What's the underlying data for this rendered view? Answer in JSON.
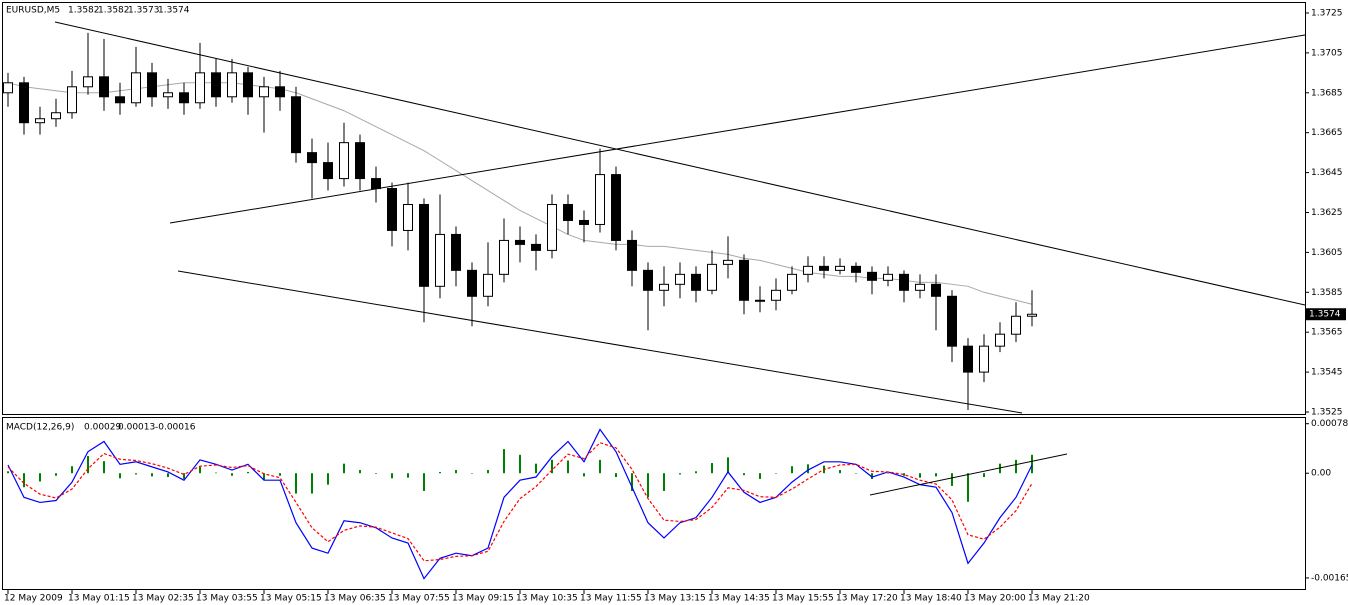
{
  "chart_data": [
    {
      "type": "candlestick",
      "title": "EURUSD,M5",
      "header_values": [
        1.3582,
        1.3582,
        1.3573,
        1.3574
      ],
      "categories": [
        "12 May 2009",
        null,
        null,
        null,
        "13 May 01:15",
        null,
        null,
        null,
        "13 May 02:35",
        null,
        null,
        null,
        "13 May 03:55",
        null,
        null,
        null,
        "13 May 05:15",
        null,
        null,
        null,
        "13 May 06:35",
        null,
        null,
        null,
        "13 May 07:55",
        null,
        null,
        null,
        "13 May 09:15",
        null,
        null,
        null,
        "13 May 10:35",
        null,
        null,
        null,
        "13 May 11:55",
        null,
        null,
        null,
        "13 May 13:15",
        null,
        null,
        null,
        "13 May 14:35",
        null,
        null,
        null,
        "13 May 15:55",
        null,
        null,
        null,
        "13 May 17:20",
        null,
        null,
        null,
        "13 May 18:40",
        null,
        null,
        null,
        "13 May 20:00",
        null,
        null,
        null,
        "13 May 21:20"
      ],
      "open": [
        1.3685,
        1.369,
        1.367,
        1.3672,
        1.3675,
        1.3688,
        1.3693,
        1.3683,
        1.368,
        1.3695,
        1.3683,
        1.3685,
        1.368,
        1.3695,
        1.3683,
        1.3695,
        1.3683,
        1.3688,
        1.3683,
        1.3655,
        1.365,
        1.3642,
        1.366,
        1.3642,
        1.3637,
        1.3616,
        1.3629,
        1.3588,
        1.3614,
        1.3596,
        1.3583,
        1.3594,
        1.3611,
        1.3609,
        1.3606,
        1.3629,
        1.3621,
        1.3619,
        1.3644,
        1.3611,
        1.3596,
        1.3586,
        1.3589,
        1.3594,
        1.3586,
        1.3599,
        1.3601,
        1.3581,
        1.3581,
        1.3586,
        1.3594,
        1.3598,
        1.3596,
        1.3598,
        1.3595,
        1.3591,
        1.3594,
        1.3586,
        1.3589,
        1.3583,
        1.3558,
        1.3545,
        1.3558,
        1.3564,
        1.3573
      ],
      "high": [
        1.3695,
        1.3693,
        1.3678,
        1.3682,
        1.3696,
        1.3715,
        1.3712,
        1.369,
        1.3708,
        1.37,
        1.3692,
        1.369,
        1.371,
        1.3702,
        1.3702,
        1.3698,
        1.3693,
        1.3696,
        1.3688,
        1.3662,
        1.366,
        1.367,
        1.3664,
        1.3648,
        1.364,
        1.364,
        1.3632,
        1.3634,
        1.3618,
        1.36,
        1.361,
        1.3622,
        1.3618,
        1.3614,
        1.3634,
        1.3634,
        1.3626,
        1.3657,
        1.3648,
        1.3616,
        1.36,
        1.3598,
        1.36,
        1.3598,
        1.3606,
        1.3613,
        1.3604,
        1.3588,
        1.3592,
        1.3598,
        1.3603,
        1.3603,
        1.3602,
        1.36,
        1.3598,
        1.3598,
        1.3596,
        1.3594,
        1.3594,
        1.3586,
        1.3562,
        1.3564,
        1.357,
        1.358,
        1.3586
      ],
      "low": [
        1.3678,
        1.3664,
        1.3664,
        1.3668,
        1.3672,
        1.3684,
        1.3676,
        1.3674,
        1.3678,
        1.3678,
        1.3677,
        1.3674,
        1.3677,
        1.3678,
        1.368,
        1.3674,
        1.3665,
        1.3676,
        1.365,
        1.3632,
        1.3636,
        1.3638,
        1.3636,
        1.363,
        1.3608,
        1.3606,
        1.357,
        1.3582,
        1.3588,
        1.3568,
        1.3578,
        1.359,
        1.36,
        1.3596,
        1.3602,
        1.3614,
        1.361,
        1.3615,
        1.3606,
        1.3588,
        1.3566,
        1.3578,
        1.3582,
        1.358,
        1.3584,
        1.3592,
        1.3574,
        1.3575,
        1.3576,
        1.3584,
        1.359,
        1.3592,
        1.3594,
        1.359,
        1.3584,
        1.3588,
        1.358,
        1.3582,
        1.3566,
        1.355,
        1.3526,
        1.354,
        1.3555,
        1.356,
        1.3568
      ],
      "close": [
        1.369,
        1.367,
        1.3672,
        1.3675,
        1.3688,
        1.3693,
        1.3683,
        1.368,
        1.3695,
        1.3683,
        1.3685,
        1.368,
        1.3695,
        1.3683,
        1.3695,
        1.3683,
        1.3688,
        1.3683,
        1.3655,
        1.365,
        1.3642,
        1.366,
        1.3642,
        1.3637,
        1.3616,
        1.3629,
        1.3588,
        1.3614,
        1.3596,
        1.3583,
        1.3594,
        1.3611,
        1.3609,
        1.3606,
        1.3629,
        1.3621,
        1.3619,
        1.3644,
        1.3611,
        1.3596,
        1.3586,
        1.3589,
        1.3594,
        1.3586,
        1.3599,
        1.3601,
        1.3581,
        1.3581,
        1.3586,
        1.3594,
        1.3598,
        1.3596,
        1.3598,
        1.3595,
        1.3591,
        1.3594,
        1.3586,
        1.3589,
        1.3583,
        1.3558,
        1.3545,
        1.3558,
        1.3564,
        1.3573,
        1.3574
      ],
      "ma": {
        "color": "#a8a8a8",
        "values": [
          1.369,
          1.3688,
          1.3687,
          1.3686,
          1.3685,
          1.3685,
          1.3685,
          1.3686,
          1.3687,
          1.3688,
          1.3689,
          1.369,
          1.369,
          1.369,
          1.369,
          1.3689,
          1.3688,
          1.3687,
          1.3685,
          1.3682,
          1.3679,
          1.3676,
          1.3672,
          1.3668,
          1.3664,
          1.366,
          1.3656,
          1.3651,
          1.3646,
          1.3641,
          1.3636,
          1.3631,
          1.3626,
          1.3622,
          1.3618,
          1.3614,
          1.3611,
          1.361,
          1.3609,
          1.3609,
          1.3608,
          1.3608,
          1.3607,
          1.3606,
          1.3605,
          1.3604,
          1.3602,
          1.3601,
          1.3599,
          1.3597,
          1.3595,
          1.3594,
          1.3593,
          1.3593,
          1.3592,
          1.3592,
          1.3591,
          1.359,
          1.359,
          1.3589,
          1.3588,
          1.3585,
          1.3583,
          1.3581,
          1.3579
        ]
      },
      "color": "#000000",
      "ylim": [
        1.3524,
        1.373
      ],
      "yticks": [
        1.3725,
        1.3705,
        1.3685,
        1.3665,
        1.3645,
        1.3625,
        1.3605,
        1.3585,
        1.3565,
        1.3545,
        1.3525
      ]
    },
    {
      "type": "macd",
      "title": "MACD(12,26,9)",
      "series": [
        {
          "color": "#008000",
          "style": "bar",
          "values": [
            3e-05,
            -0.00022,
            -0.00013,
            -4e-05,
            0.00011,
            0.00027,
            0.00019,
            -8e-05,
            -2e-05,
            -5e-05,
            -6e-05,
            -9e-05,
            0.0001,
            1e-05,
            -4e-05,
            2e-05,
            -0.0001,
            -4e-05,
            -0.00032,
            -0.00032,
            -0.00018,
            0.00015,
            5e-05,
            -1e-05,
            -8e-05,
            -7e-05,
            -0.00028,
            2e-05,
            5e-05,
            0,
            5e-05,
            0.00038,
            0.00029,
            0.00015,
            0.00021,
            0.0002,
            -5e-05,
            0.00021,
            -6e-05,
            -0.00028,
            -0.00038,
            -0.00028,
            -2e-05,
            3e-05,
            0.00016,
            0.00025,
            -3e-05,
            -9e-05,
            0,
            0.00011,
            0.00014,
            0.00012,
            5e-05,
            0,
            -9e-05,
            0,
            -4e-05,
            -7e-05,
            -5e-05,
            -0.0002,
            -0.00045,
            -6e-05,
            0.00015,
            0.00021,
            0.00029
          ]
        },
        {
          "color": "#0000ff",
          "style": "line",
          "values": [
            0.00013,
            -0.00038,
            -0.00046,
            -0.00043,
            -0.00014,
            0.00034,
            0.0005,
            0.00014,
            0.00018,
            0.0001,
            2e-05,
            -0.00011,
            0.00021,
            0.00014,
            5e-05,
            0.00014,
            -0.00011,
            -0.00011,
            -0.00078,
            -0.00118,
            -0.00126,
            -0.00075,
            -0.00078,
            -0.00086,
            -0.00102,
            -0.0011,
            -0.00166,
            -0.00134,
            -0.00126,
            -0.0013,
            -0.00118,
            -0.00038,
            -0.00011,
            -6e-05,
            0.00026,
            0.0005,
            0.00018,
            0.00069,
            0.00034,
            -0.00022,
            -0.00078,
            -0.00102,
            -0.00078,
            -0.0007,
            -0.00038,
            2e-05,
            -0.0003,
            -0.00046,
            -0.00038,
            -0.00014,
            5e-05,
            0.00018,
            0.00018,
            0.00014,
            -6e-05,
            2e-05,
            -6e-05,
            -0.00018,
            -0.00022,
            -0.00062,
            -0.00142,
            -0.0011,
            -0.0007,
            -0.00038,
            0.00013
          ]
        },
        {
          "color": "#ff0000",
          "style": "dashed",
          "values": [
            0.0001,
            -0.00016,
            -0.00033,
            -0.00039,
            -0.00025,
            7e-05,
            0.00031,
            0.00022,
            0.0002,
            0.00015,
            8e-05,
            -2e-05,
            0.00011,
            0.00013,
            9e-05,
            0.00012,
            -1e-05,
            -7e-05,
            -0.00046,
            -0.00086,
            -0.00108,
            -0.0009,
            -0.00083,
            -0.00085,
            -0.00094,
            -0.00103,
            -0.00138,
            -0.00136,
            -0.00131,
            -0.0013,
            -0.00123,
            -0.00076,
            -0.0004,
            -0.00021,
            5e-05,
            0.0003,
            0.00023,
            0.00048,
            0.0004,
            6e-05,
            -0.0004,
            -0.00074,
            -0.00076,
            -0.00073,
            -0.00054,
            -0.00023,
            -0.00027,
            -0.00037,
            -0.00038,
            -0.00025,
            -9e-05,
            6e-05,
            0.00013,
            0.00014,
            3e-05,
            2e-05,
            -2e-05,
            -0.00011,
            -0.00017,
            -0.00042,
            -0.00097,
            -0.00104,
            -0.00085,
            -0.00059,
            -0.00016
          ]
        }
      ],
      "ylim": [
        -0.00184,
        0.00087
      ],
      "yticks": [
        0.00078,
        {
          "value": 0,
          "label": "0.00"
        },
        -0.00165
      ]
    }
  ]
}
